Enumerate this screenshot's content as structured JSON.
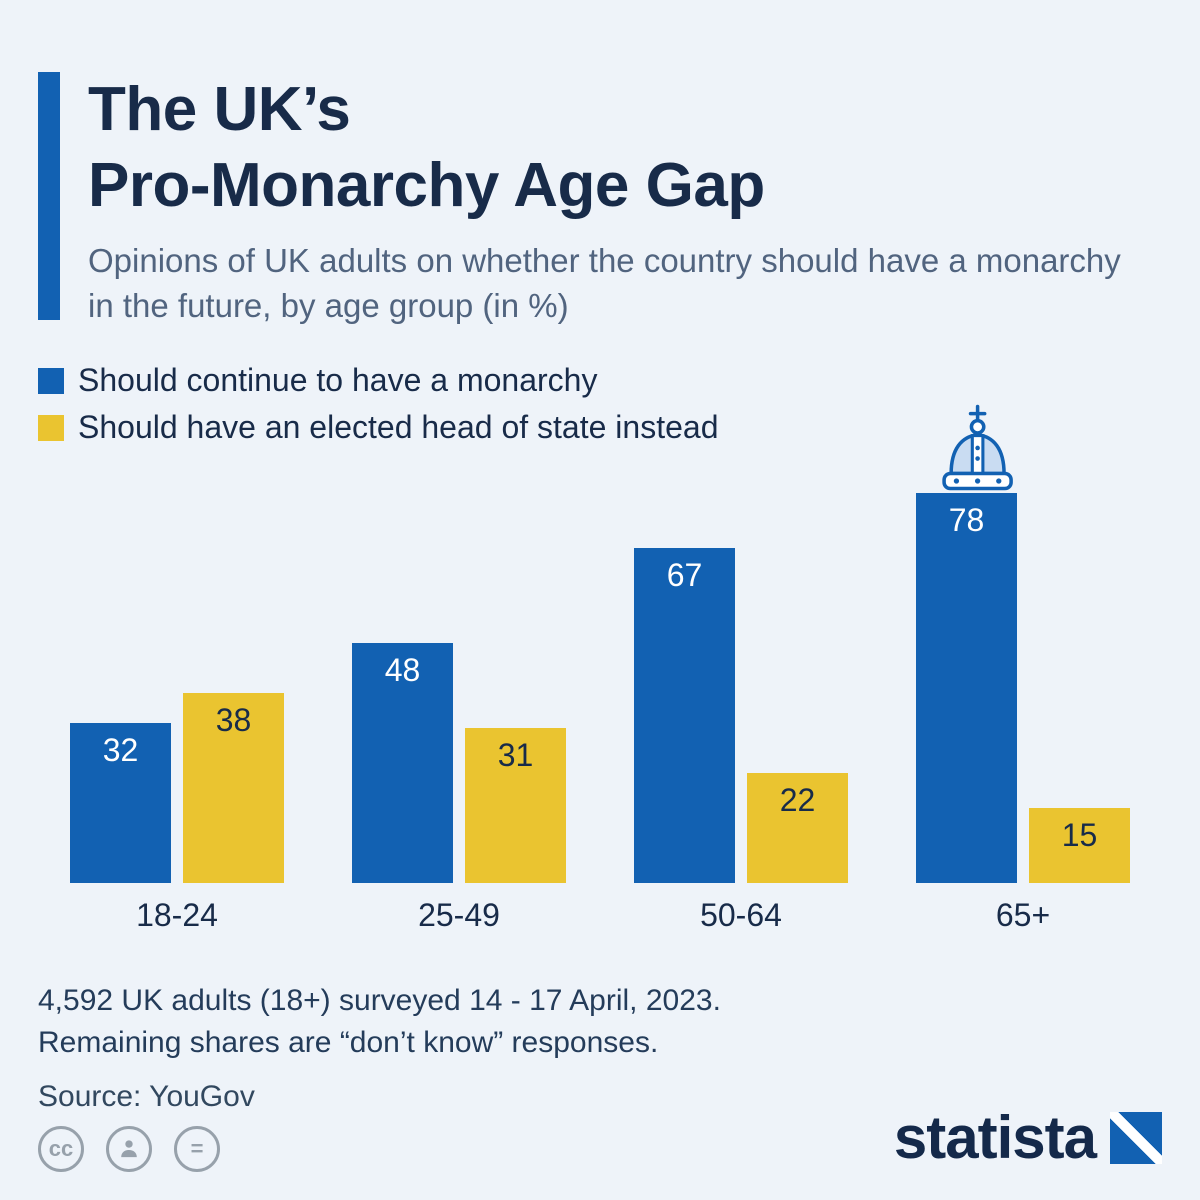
{
  "header": {
    "title_line1": "The UK’s",
    "title_line2": "Pro-Monarchy Age Gap",
    "subtitle": "Opinions of UK adults on whether the country should have a monarchy in the future, by age group (in %)"
  },
  "legend": [
    {
      "label": "Should continue to have a monarchy",
      "color": "#1261b2"
    },
    {
      "label": "Should have an elected head of state instead",
      "color": "#eac430"
    }
  ],
  "chart_data": {
    "type": "bar",
    "title": "The UK’s Pro-Monarchy Age Gap",
    "subtitle": "Opinions of UK adults on whether the country should have a monarchy in the future, by age group (in %)",
    "categories": [
      "18-24",
      "25-49",
      "50-64",
      "65+"
    ],
    "series": [
      {
        "name": "Should continue to have a monarchy",
        "values": [
          32,
          48,
          67,
          78
        ],
        "color": "#1261b2",
        "label_color": "#ffffff"
      },
      {
        "name": "Should have an elected head of state instead",
        "values": [
          38,
          31,
          22,
          15
        ],
        "color": "#eac430",
        "label_color": "#182b49"
      }
    ],
    "ylim": [
      0,
      100
    ],
    "unit": "%",
    "grid": false,
    "legend_position": "top-left",
    "annotations": [
      "crown icon above 65+ monarchy bar"
    ]
  },
  "footer": {
    "note_line1": "4,592 UK adults (18+) surveyed 14 - 17 April, 2023.",
    "note_line2": "Remaining shares are “don’t know” responses.",
    "source": "Source: YouGov",
    "brand": "statista",
    "license_icons": [
      "cc-icon",
      "attribution-person-icon",
      "no-derivatives-icon"
    ]
  },
  "colors": {
    "background": "#eef3f9",
    "accent_bar": "#1261b2",
    "title_text": "#182b49",
    "subtitle_text": "#51647f"
  }
}
